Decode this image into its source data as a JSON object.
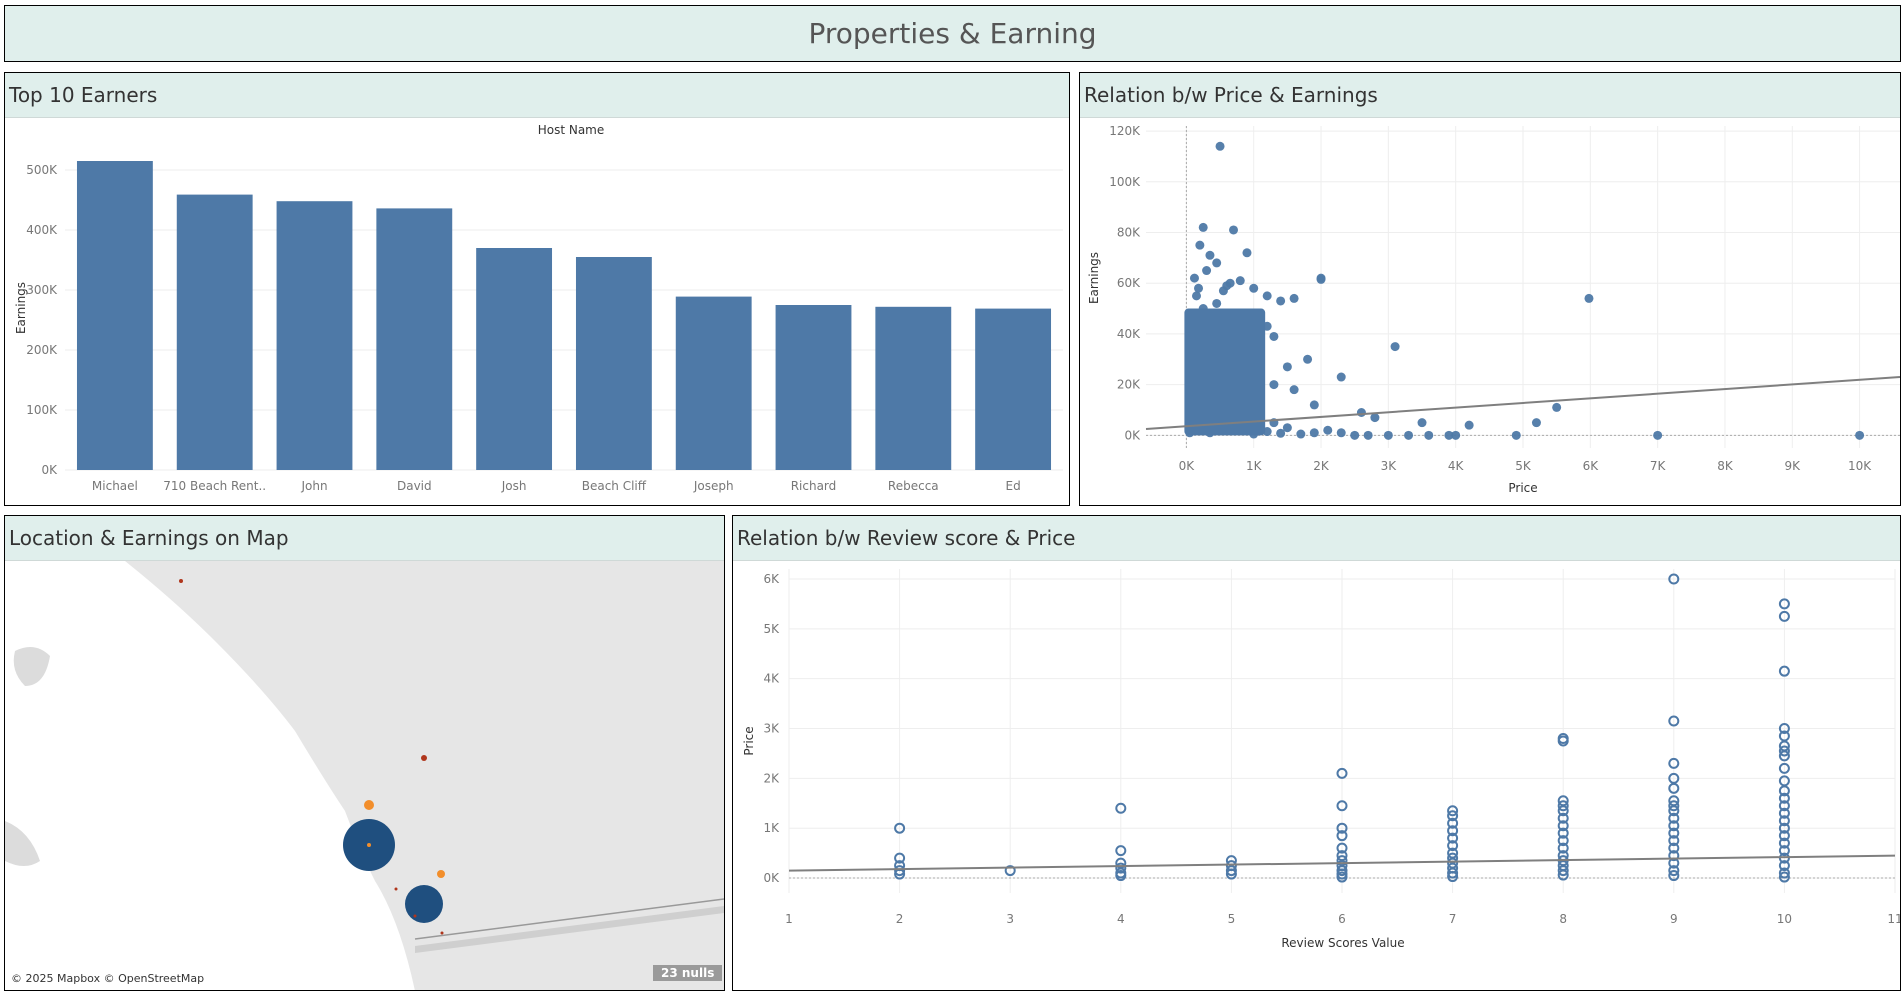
{
  "dashboard": {
    "title": "Properties & Earning"
  },
  "panels": {
    "top_earners": "Top 10 Earners",
    "price_earnings": "Relation b/w Price & Earnings",
    "map": "Location & Earnings on Map",
    "review_price": "Relation b/w Review score & Price"
  },
  "colors": {
    "bar": "#4e79a7",
    "trend": "#7f7f7f",
    "header_bg": "#e0efec",
    "orange": "#f28e2b",
    "dark_red": "#b0361c"
  },
  "map": {
    "attribution": "© 2025 Mapbox © OpenStreetMap",
    "nulls_badge": "23 nulls"
  },
  "chart_data": [
    {
      "type": "bar",
      "title": "Host Name",
      "ylabel": "Earnings",
      "xlabel": "",
      "categories": [
        "Michael",
        "710 Beach Rent..",
        "John",
        "David",
        "Josh",
        "Beach Cliff",
        "Joseph",
        "Richard",
        "Rebecca",
        "Ed"
      ],
      "values": [
        515000,
        459000,
        448000,
        436000,
        370000,
        355000,
        289000,
        275000,
        272000,
        269000
      ],
      "ylim": [
        0,
        540000
      ],
      "yticks": [
        0,
        100000,
        200000,
        300000,
        400000,
        500000
      ],
      "ytick_labels": [
        "0K",
        "100K",
        "200K",
        "300K",
        "400K",
        "500K"
      ]
    },
    {
      "type": "scatter",
      "xlabel": "Price",
      "ylabel": "Earnings",
      "xlim": [
        -600,
        10600
      ],
      "ylim": [
        -5000,
        122000
      ],
      "xticks": [
        0,
        1000,
        2000,
        3000,
        4000,
        5000,
        6000,
        7000,
        8000,
        9000,
        10000
      ],
      "xtick_labels": [
        "0K",
        "1K",
        "2K",
        "3K",
        "4K",
        "5K",
        "6K",
        "7K",
        "8K",
        "9K",
        "10K"
      ],
      "yticks": [
        0,
        20000,
        40000,
        60000,
        80000,
        100000,
        120000
      ],
      "ytick_labels": [
        "0K",
        "20K",
        "40K",
        "60K",
        "80K",
        "100K",
        "120K"
      ],
      "trend": {
        "x": [
          -600,
          10600
        ],
        "y": [
          2500,
          23000
        ]
      },
      "points": [
        [
          500,
          114000
        ],
        [
          250,
          82000
        ],
        [
          700,
          81000
        ],
        [
          200,
          75000
        ],
        [
          350,
          71000
        ],
        [
          450,
          68000
        ],
        [
          300,
          65000
        ],
        [
          900,
          72000
        ],
        [
          800,
          61000
        ],
        [
          600,
          59000
        ],
        [
          1000,
          58000
        ],
        [
          1200,
          55000
        ],
        [
          1400,
          53000
        ],
        [
          1600,
          54000
        ],
        [
          2000,
          62000
        ],
        [
          2000,
          61500
        ],
        [
          5980,
          54000
        ],
        [
          150,
          55000
        ],
        [
          250,
          50000
        ],
        [
          400,
          48000
        ],
        [
          700,
          46000
        ],
        [
          900,
          44000
        ],
        [
          1200,
          43000
        ],
        [
          1300,
          39000
        ],
        [
          750,
          40000
        ],
        [
          500,
          38000
        ],
        [
          300,
          36000
        ],
        [
          200,
          33000
        ],
        [
          350,
          30000
        ],
        [
          650,
          34000
        ],
        [
          1100,
          31000
        ],
        [
          1500,
          27000
        ],
        [
          1800,
          30000
        ],
        [
          2300,
          23000
        ],
        [
          3100,
          35000
        ],
        [
          850,
          27000
        ],
        [
          450,
          25000
        ],
        [
          1000,
          22000
        ],
        [
          1300,
          20000
        ],
        [
          1600,
          18000
        ],
        [
          1900,
          12000
        ],
        [
          2600,
          9000
        ],
        [
          2800,
          7000
        ],
        [
          3500,
          5000
        ],
        [
          4200,
          4000
        ],
        [
          5200,
          5000
        ],
        [
          5500,
          11000
        ],
        [
          7000,
          0
        ],
        [
          10000,
          0
        ],
        [
          4900,
          0
        ],
        [
          4000,
          0
        ],
        [
          3900,
          0
        ],
        [
          3600,
          0
        ],
        [
          3300,
          0
        ],
        [
          3000,
          0
        ],
        [
          2700,
          0
        ],
        [
          2500,
          0
        ],
        [
          2300,
          1000
        ],
        [
          2100,
          2000
        ],
        [
          1900,
          1000
        ],
        [
          1700,
          500
        ],
        [
          1500,
          3000
        ],
        [
          1300,
          5000
        ],
        [
          1100,
          8000
        ],
        [
          900,
          10000
        ],
        [
          700,
          13000
        ],
        [
          500,
          16000
        ],
        [
          400,
          19000
        ],
        [
          300,
          22000
        ],
        [
          200,
          26000
        ],
        [
          100,
          29000
        ],
        [
          150,
          38000
        ],
        [
          250,
          42000
        ],
        [
          350,
          45000
        ],
        [
          450,
          52000
        ],
        [
          550,
          57000
        ],
        [
          650,
          60000
        ],
        [
          120,
          62000
        ],
        [
          180,
          58000
        ],
        [
          80,
          48000
        ],
        [
          60,
          20000
        ],
        [
          90,
          10000
        ],
        [
          120,
          5000
        ],
        [
          200,
          2000
        ],
        [
          350,
          1000
        ],
        [
          600,
          2000
        ],
        [
          800,
          3000
        ],
        [
          1000,
          500
        ],
        [
          1200,
          1500
        ],
        [
          1400,
          800
        ],
        [
          50,
          1000
        ],
        [
          70,
          3000
        ],
        [
          110,
          15000
        ],
        [
          160,
          12000
        ],
        [
          230,
          8000
        ],
        [
          320,
          6000
        ],
        [
          420,
          9000
        ],
        [
          520,
          11000
        ],
        [
          620,
          7000
        ],
        [
          720,
          4000
        ]
      ]
    },
    {
      "type": "scatter",
      "xlabel": "Review Scores Value",
      "ylabel": "Price",
      "xlim": [
        1,
        11
      ],
      "ylim": [
        -300,
        6200
      ],
      "xticks": [
        1,
        2,
        3,
        4,
        5,
        6,
        7,
        8,
        9,
        10,
        11
      ],
      "xtick_labels": [
        "1",
        "2",
        "3",
        "4",
        "5",
        "6",
        "7",
        "8",
        "9",
        "10",
        "11"
      ],
      "yticks": [
        0,
        1000,
        2000,
        3000,
        4000,
        5000,
        6000
      ],
      "ytick_labels": [
        "0K",
        "1K",
        "2K",
        "3K",
        "4K",
        "5K",
        "6K"
      ],
      "trend": {
        "x": [
          1,
          11
        ],
        "y": [
          150,
          450
        ]
      },
      "points": [
        [
          2,
          1000
        ],
        [
          2,
          400
        ],
        [
          2,
          250
        ],
        [
          2,
          150
        ],
        [
          2,
          80
        ],
        [
          3,
          150
        ],
        [
          4,
          1400
        ],
        [
          4,
          550
        ],
        [
          4,
          300
        ],
        [
          4,
          200
        ],
        [
          4,
          100
        ],
        [
          4,
          50
        ],
        [
          5,
          350
        ],
        [
          5,
          250
        ],
        [
          5,
          150
        ],
        [
          5,
          80
        ],
        [
          6,
          2100
        ],
        [
          6,
          1450
        ],
        [
          6,
          1000
        ],
        [
          6,
          850
        ],
        [
          6,
          600
        ],
        [
          6,
          450
        ],
        [
          6,
          350
        ],
        [
          6,
          250
        ],
        [
          6,
          150
        ],
        [
          6,
          80
        ],
        [
          6,
          20
        ],
        [
          7,
          1350
        ],
        [
          7,
          1250
        ],
        [
          7,
          1100
        ],
        [
          7,
          950
        ],
        [
          7,
          800
        ],
        [
          7,
          650
        ],
        [
          7,
          500
        ],
        [
          7,
          400
        ],
        [
          7,
          300
        ],
        [
          7,
          200
        ],
        [
          7,
          100
        ],
        [
          7,
          30
        ],
        [
          8,
          2800
        ],
        [
          8,
          2750
        ],
        [
          8,
          1550
        ],
        [
          8,
          1450
        ],
        [
          8,
          1350
        ],
        [
          8,
          1200
        ],
        [
          8,
          1050
        ],
        [
          8,
          900
        ],
        [
          8,
          750
        ],
        [
          8,
          600
        ],
        [
          8,
          450
        ],
        [
          8,
          350
        ],
        [
          8,
          250
        ],
        [
          8,
          150
        ],
        [
          8,
          60
        ],
        [
          9,
          6000
        ],
        [
          9,
          3150
        ],
        [
          9,
          2300
        ],
        [
          9,
          2000
        ],
        [
          9,
          1800
        ],
        [
          9,
          1550
        ],
        [
          9,
          1450
        ],
        [
          9,
          1350
        ],
        [
          9,
          1200
        ],
        [
          9,
          1050
        ],
        [
          9,
          900
        ],
        [
          9,
          750
        ],
        [
          9,
          600
        ],
        [
          9,
          450
        ],
        [
          9,
          300
        ],
        [
          9,
          150
        ],
        [
          9,
          50
        ],
        [
          10,
          5500
        ],
        [
          10,
          5250
        ],
        [
          10,
          4150
        ],
        [
          10,
          3000
        ],
        [
          10,
          2850
        ],
        [
          10,
          2650
        ],
        [
          10,
          2550
        ],
        [
          10,
          2450
        ],
        [
          10,
          2200
        ],
        [
          10,
          1950
        ],
        [
          10,
          1750
        ],
        [
          10,
          1600
        ],
        [
          10,
          1450
        ],
        [
          10,
          1300
        ],
        [
          10,
          1150
        ],
        [
          10,
          1000
        ],
        [
          10,
          850
        ],
        [
          10,
          700
        ],
        [
          10,
          550
        ],
        [
          10,
          400
        ],
        [
          10,
          250
        ],
        [
          10,
          100
        ],
        [
          10,
          20
        ]
      ]
    }
  ]
}
